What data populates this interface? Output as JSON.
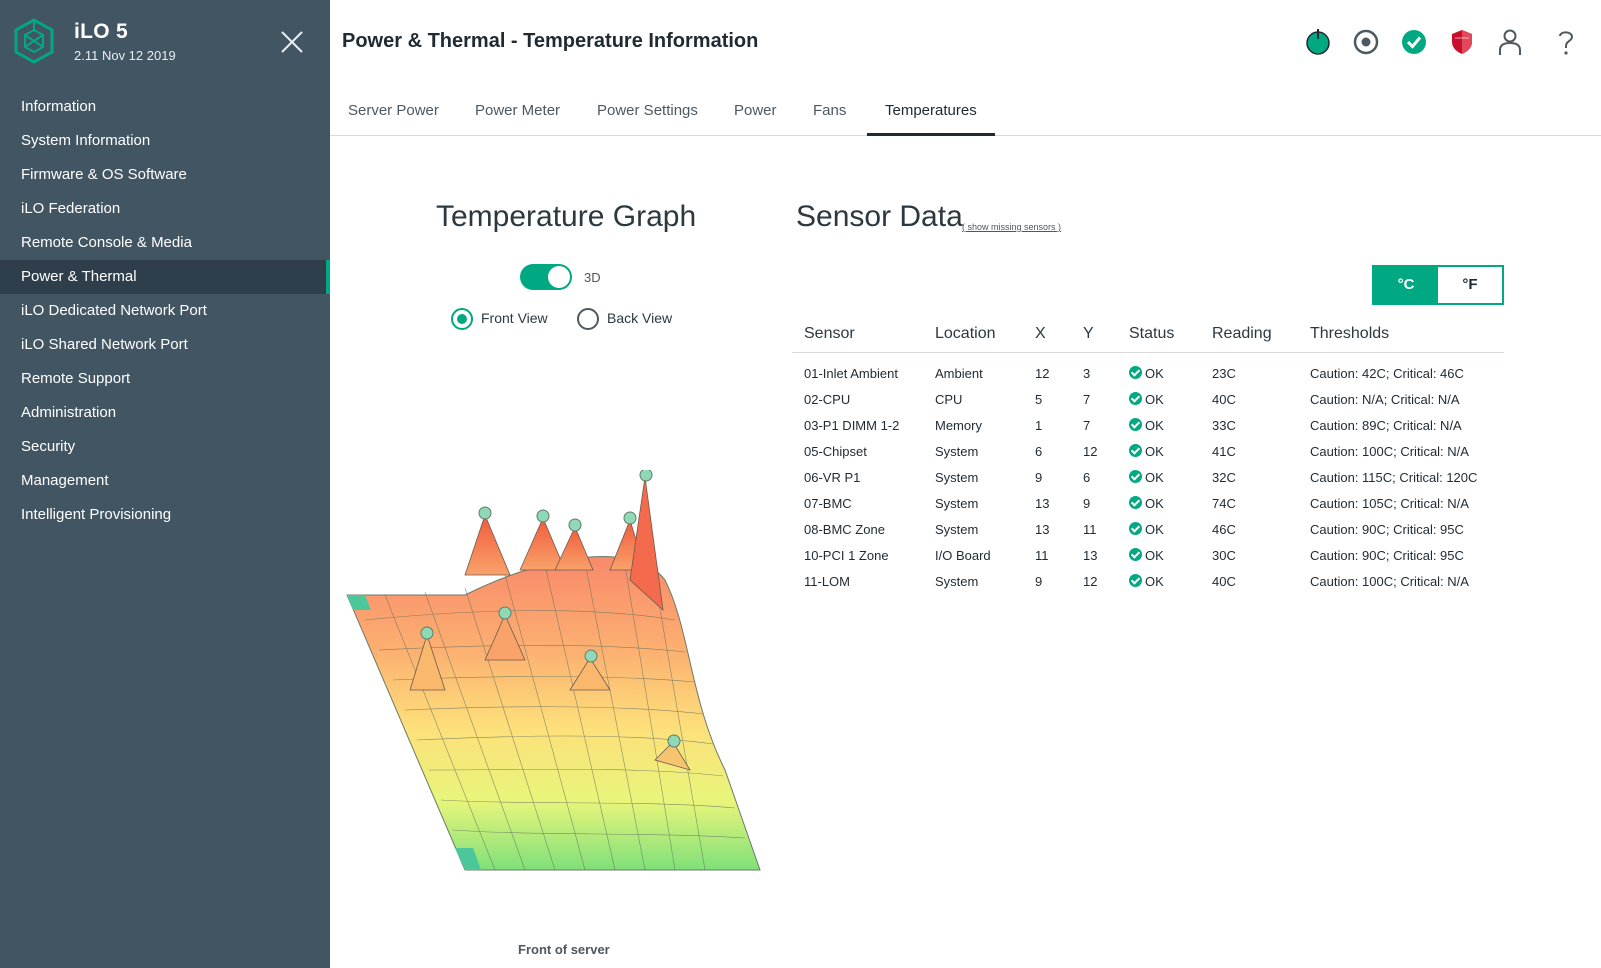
{
  "brand": {
    "product": "iLO 5",
    "version": "2.11 Nov 12 2019",
    "logo_icon": "hpe-element-icon",
    "accent": "#01a982"
  },
  "sidebar": {
    "items": [
      {
        "label": "Information"
      },
      {
        "label": "System Information"
      },
      {
        "label": "Firmware & OS Software"
      },
      {
        "label": "iLO Federation"
      },
      {
        "label": "Remote Console & Media"
      },
      {
        "label": "Power & Thermal",
        "active": true
      },
      {
        "label": "iLO Dedicated Network Port"
      },
      {
        "label": "iLO Shared Network Port"
      },
      {
        "label": "Remote Support"
      },
      {
        "label": "Administration"
      },
      {
        "label": "Security"
      },
      {
        "label": "Management"
      },
      {
        "label": "Intelligent Provisioning"
      }
    ]
  },
  "header": {
    "title": "Power & Thermal - Temperature Information",
    "icons": [
      "power-status-icon",
      "uid-indicator-icon",
      "health-ok-icon",
      "security-shield-icon",
      "user-icon",
      "help-icon"
    ]
  },
  "tabs": [
    {
      "label": "Server Power"
    },
    {
      "label": "Power Meter"
    },
    {
      "label": "Power Settings"
    },
    {
      "label": "Power"
    },
    {
      "label": "Fans"
    },
    {
      "label": "Temperatures",
      "active": true
    }
  ],
  "graph": {
    "title": "Temperature Graph",
    "toggle_label": "3D",
    "toggle_on": true,
    "views": [
      {
        "label": "Front View",
        "checked": true
      },
      {
        "label": "Back View",
        "checked": false
      }
    ],
    "caption": "Front of server"
  },
  "sensor_data": {
    "title": "Sensor Data",
    "missing_link": "( show missing sensors )",
    "units": {
      "celsius": "°C",
      "fahrenheit": "°F",
      "selected": "°C"
    },
    "columns": [
      "Sensor",
      "Location",
      "X",
      "Y",
      "Status",
      "Reading",
      "Thresholds"
    ],
    "rows": [
      {
        "sensor": "01-Inlet Ambient",
        "location": "Ambient",
        "x": "12",
        "y": "3",
        "status": "OK",
        "reading": "23C",
        "thresholds": "Caution: 42C; Critical: 46C"
      },
      {
        "sensor": "02-CPU",
        "location": "CPU",
        "x": "5",
        "y": "7",
        "status": "OK",
        "reading": "40C",
        "thresholds": "Caution: N/A; Critical: N/A"
      },
      {
        "sensor": "03-P1 DIMM 1-2",
        "location": "Memory",
        "x": "1",
        "y": "7",
        "status": "OK",
        "reading": "33C",
        "thresholds": "Caution: 89C; Critical: N/A"
      },
      {
        "sensor": "05-Chipset",
        "location": "System",
        "x": "6",
        "y": "12",
        "status": "OK",
        "reading": "41C",
        "thresholds": "Caution: 100C; Critical: N/A"
      },
      {
        "sensor": "06-VR P1",
        "location": "System",
        "x": "9",
        "y": "6",
        "status": "OK",
        "reading": "32C",
        "thresholds": "Caution: 115C; Critical: 120C"
      },
      {
        "sensor": "07-BMC",
        "location": "System",
        "x": "13",
        "y": "9",
        "status": "OK",
        "reading": "74C",
        "thresholds": "Caution: 105C; Critical: N/A"
      },
      {
        "sensor": "08-BMC Zone",
        "location": "System",
        "x": "13",
        "y": "11",
        "status": "OK",
        "reading": "46C",
        "thresholds": "Caution: 90C; Critical: 95C"
      },
      {
        "sensor": "10-PCI 1 Zone",
        "location": "I/O Board",
        "x": "11",
        "y": "13",
        "status": "OK",
        "reading": "30C",
        "thresholds": "Caution: 90C; Critical: 95C"
      },
      {
        "sensor": "11-LOM",
        "location": "System",
        "x": "9",
        "y": "12",
        "status": "OK",
        "reading": "40C",
        "thresholds": "Caution: 100C; Critical: N/A"
      }
    ]
  }
}
